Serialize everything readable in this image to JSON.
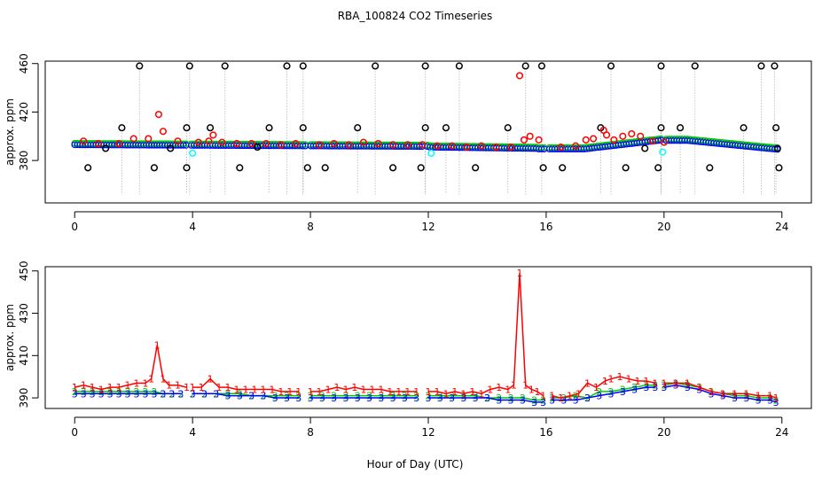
{
  "title": "RBA_100824  CO2 Timeseries",
  "xlabel": "Hour of Day (UTC)",
  "colors": {
    "black": "#000000",
    "red": "#ff0000",
    "green": "#00cd00",
    "blue": "#0000ff",
    "cyan": "#00ffff",
    "gray": "#aaaaaa"
  },
  "chart_data": [
    {
      "type": "scatter",
      "panel": "top",
      "ylabel": "approx. ppm",
      "xlim": [
        -1,
        25
      ],
      "ylim": [
        345,
        462
      ],
      "x_ticks": [
        0,
        4,
        8,
        12,
        16,
        20,
        24
      ],
      "y_ticks": [
        380,
        420,
        460
      ],
      "series": [
        {
          "name": "black",
          "color": "#000000",
          "x": [
            0.45,
            1.05,
            1.6,
            2.2,
            2.7,
            3.25,
            3.8,
            3.8,
            3.9,
            4.6,
            5.1,
            5.6,
            6.2,
            6.6,
            7.2,
            7.75,
            7.75,
            7.9,
            8.5,
            9.6,
            10.2,
            10.8,
            11.75,
            11.9,
            11.9,
            12.6,
            13.05,
            13.6,
            14.7,
            15.3,
            15.85,
            15.9,
            16.55,
            17.85,
            18.2,
            18.7,
            19.35,
            19.8,
            19.9,
            19.9,
            20.55,
            21.05,
            21.55,
            22.7,
            23.3,
            23.75,
            23.8,
            23.85,
            23.9
          ],
          "y": [
            374,
            390,
            407,
            458,
            374,
            390,
            374,
            407,
            458,
            407,
            458,
            374,
            391,
            407,
            458,
            458,
            407,
            374,
            374,
            407,
            458,
            374,
            374,
            407,
            458,
            407,
            458,
            374,
            407,
            458,
            458,
            374,
            374,
            407,
            458,
            374,
            390,
            374,
            407,
            458,
            407,
            458,
            374,
            407,
            458,
            458,
            407,
            390,
            374
          ]
        },
        {
          "name": "red",
          "color": "#ff0000",
          "x": [
            0.3,
            0.8,
            1.5,
            2.0,
            2.5,
            2.85,
            3.0,
            3.5,
            4.2,
            4.55,
            4.7,
            5.0,
            5.5,
            6.0,
            6.5,
            7.0,
            7.5,
            8.3,
            8.8,
            9.3,
            9.8,
            10.3,
            10.8,
            11.3,
            11.8,
            12.3,
            12.8,
            13.3,
            13.8,
            14.3,
            14.8,
            15.1,
            15.25,
            15.45,
            15.75,
            16.5,
            17.0,
            17.35,
            17.6,
            17.95,
            18.05,
            18.3,
            18.6,
            18.9,
            19.2,
            19.6,
            20.0
          ],
          "y": [
            396,
            394,
            394,
            398,
            398,
            418,
            404,
            396,
            395,
            396,
            401,
            395,
            394,
            394,
            394,
            393,
            394,
            393,
            394,
            393,
            395,
            394,
            393,
            393,
            393,
            392,
            392,
            391,
            392,
            391,
            391,
            450,
            397,
            400,
            397,
            391,
            392,
            397,
            398,
            405,
            401,
            397,
            400,
            402,
            400,
            396,
            395
          ]
        },
        {
          "name": "cyan",
          "color": "#00ffff",
          "x": [
            4.0,
            12.1,
            19.95
          ],
          "y": [
            386,
            386,
            387
          ]
        }
      ]
    },
    {
      "type": "scatter",
      "panel": "bottom",
      "ylabel": "approx. ppm",
      "xlim": [
        -1,
        25
      ],
      "ylim": [
        385,
        452
      ],
      "x_ticks": [
        0,
        4,
        8,
        12,
        16,
        20,
        24
      ],
      "y_ticks": [
        390,
        410,
        430,
        450
      ],
      "series": [
        {
          "name": "1 (red)",
          "color": "#ff0000",
          "marker": "1",
          "segments": [
            {
              "x": [
                0.0,
                0.3,
                0.6,
                0.9,
                1.2,
                1.5,
                1.8,
                2.1,
                2.4,
                2.6,
                2.8,
                3.0,
                3.2,
                3.5,
                3.8
              ],
              "y": [
                395,
                396,
                395,
                394,
                395,
                395,
                396,
                397,
                397,
                399,
                415,
                399,
                396,
                396,
                395
              ]
            },
            {
              "x": [
                4.0,
                4.3,
                4.6,
                4.9,
                5.2,
                5.5,
                5.8,
                6.1,
                6.4,
                6.7,
                7.0,
                7.3,
                7.6
              ],
              "y": [
                395,
                395,
                399,
                395,
                395,
                394,
                394,
                394,
                394,
                394,
                393,
                393,
                393
              ]
            },
            {
              "x": [
                8.0,
                8.3,
                8.6,
                8.9,
                9.2,
                9.5,
                9.8,
                10.1,
                10.4,
                10.7,
                11.0,
                11.3,
                11.6
              ],
              "y": [
                393,
                393,
                394,
                395,
                394,
                395,
                394,
                394,
                394,
                393,
                393,
                393,
                393
              ]
            },
            {
              "x": [
                12.0,
                12.3,
                12.6,
                12.9,
                13.2,
                13.5,
                13.8,
                14.1,
                14.4,
                14.7,
                14.9,
                15.1,
                15.3,
                15.5,
                15.7,
                15.9
              ],
              "y": [
                393,
                393,
                392,
                393,
                392,
                393,
                392,
                394,
                395,
                394,
                396,
                449,
                396,
                394,
                393,
                391
              ]
            },
            {
              "x": [
                16.2,
                16.5,
                16.8,
                17.1,
                17.4,
                17.7,
                18.0,
                18.2,
                18.5,
                18.8,
                19.1,
                19.4,
                19.7
              ],
              "y": [
                391,
                390,
                391,
                392,
                397,
                395,
                398,
                399,
                400,
                399,
                398,
                398,
                397
              ]
            },
            {
              "x": [
                20.0,
                20.4,
                20.8,
                21.2,
                21.6,
                22.0,
                22.4,
                22.8,
                23.2,
                23.6,
                23.8
              ],
              "y": [
                397,
                397,
                397,
                395,
                393,
                392,
                392,
                392,
                391,
                391,
                390
              ]
            }
          ]
        },
        {
          "name": "green",
          "color": "#00cd00",
          "marker": "2",
          "segments": [
            {
              "x": [
                0.0,
                0.3,
                0.6,
                0.9,
                1.2,
                1.5,
                1.8,
                2.1,
                2.4,
                2.7,
                3.0,
                3.3,
                3.6
              ],
              "y": [
                393,
                393,
                393,
                393,
                393,
                393,
                393,
                393,
                393,
                393,
                392,
                392,
                392
              ]
            },
            {
              "x": [
                4.0,
                4.4,
                4.8,
                5.2,
                5.6,
                6.0,
                6.4,
                6.8,
                7.2,
                7.6
              ],
              "y": [
                392,
                392,
                392,
                392,
                392,
                391,
                391,
                391,
                391,
                391
              ]
            },
            {
              "x": [
                8.0,
                8.4,
                8.8,
                9.2,
                9.6,
                10.0,
                10.4,
                10.8,
                11.2,
                11.6
              ],
              "y": [
                391,
                391,
                391,
                391,
                391,
                391,
                391,
                391,
                391,
                391
              ]
            },
            {
              "x": [
                12.0,
                12.4,
                12.8,
                13.2,
                13.6,
                14.0,
                14.4,
                14.8,
                15.2,
                15.6,
                15.9
              ],
              "y": [
                391,
                391,
                391,
                391,
                391,
                390,
                390,
                390,
                390,
                389,
                389
              ]
            },
            {
              "x": [
                16.2,
                16.6,
                17.0,
                17.4,
                17.8,
                18.2,
                18.6,
                19.0,
                19.4,
                19.7
              ],
              "y": [
                390,
                390,
                391,
                390,
                393,
                393,
                394,
                395,
                396,
                396
              ]
            },
            {
              "x": [
                20.0,
                20.4,
                20.8,
                21.2,
                21.6,
                22.0,
                22.4,
                22.8,
                23.2,
                23.6,
                23.8
              ],
              "y": [
                396,
                397,
                396,
                395,
                393,
                392,
                391,
                391,
                390,
                390,
                389
              ]
            }
          ]
        },
        {
          "name": "blue",
          "color": "#0000ff",
          "marker": "3",
          "segments": [
            {
              "x": [
                0.0,
                0.3,
                0.6,
                0.9,
                1.2,
                1.5,
                1.8,
                2.1,
                2.4,
                2.7,
                3.0,
                3.3,
                3.6
              ],
              "y": [
                392,
                392,
                392,
                392,
                392,
                392,
                392,
                392,
                392,
                392,
                392,
                392,
                392
              ]
            },
            {
              "x": [
                4.0,
                4.4,
                4.8,
                5.2,
                5.6,
                6.0,
                6.4,
                6.8,
                7.2,
                7.6
              ],
              "y": [
                392,
                392,
                392,
                391,
                391,
                391,
                391,
                390,
                390,
                390
              ]
            },
            {
              "x": [
                8.0,
                8.4,
                8.8,
                9.2,
                9.6,
                10.0,
                10.4,
                10.8,
                11.2,
                11.6
              ],
              "y": [
                390,
                390,
                390,
                390,
                390,
                390,
                390,
                390,
                390,
                390
              ]
            },
            {
              "x": [
                12.0,
                12.4,
                12.8,
                13.2,
                13.6,
                14.0,
                14.4,
                14.8,
                15.2,
                15.6,
                15.9
              ],
              "y": [
                390,
                390,
                390,
                390,
                390,
                390,
                389,
                389,
                389,
                388,
                388
              ]
            },
            {
              "x": [
                16.2,
                16.6,
                17.0,
                17.4,
                17.8,
                18.2,
                18.6,
                19.0,
                19.4,
                19.7
              ],
              "y": [
                389,
                389,
                389,
                390,
                391,
                392,
                393,
                394,
                395,
                395
              ]
            },
            {
              "x": [
                20.0,
                20.4,
                20.8,
                21.2,
                21.6,
                22.0,
                22.4,
                22.8,
                23.2,
                23.6,
                23.8
              ],
              "y": [
                395,
                396,
                395,
                394,
                392,
                391,
                390,
                390,
                389,
                389,
                388
              ]
            }
          ]
        }
      ]
    }
  ]
}
